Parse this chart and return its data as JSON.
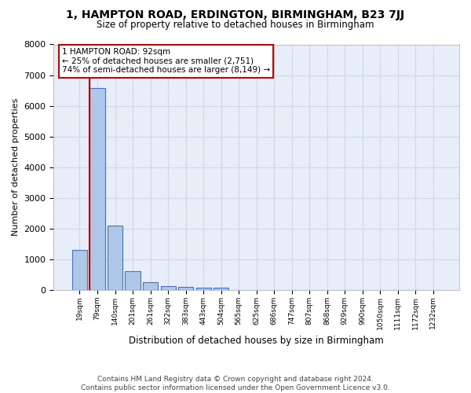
{
  "title": "1, HAMPTON ROAD, ERDINGTON, BIRMINGHAM, B23 7JJ",
  "subtitle": "Size of property relative to detached houses in Birmingham",
  "xlabel": "Distribution of detached houses by size in Birmingham",
  "ylabel": "Number of detached properties",
  "footer_line1": "Contains HM Land Registry data © Crown copyright and database right 2024.",
  "footer_line2": "Contains public sector information licensed under the Open Government Licence v3.0.",
  "bar_categories": [
    "19sqm",
    "79sqm",
    "140sqm",
    "201sqm",
    "261sqm",
    "322sqm",
    "383sqm",
    "443sqm",
    "504sqm",
    "565sqm",
    "625sqm",
    "686sqm",
    "747sqm",
    "807sqm",
    "868sqm",
    "929sqm",
    "990sqm",
    "1050sqm",
    "1111sqm",
    "1172sqm",
    "1232sqm"
  ],
  "bar_values": [
    1300,
    6580,
    2100,
    620,
    260,
    130,
    100,
    65,
    65,
    0,
    0,
    0,
    0,
    0,
    0,
    0,
    0,
    0,
    0,
    0,
    0
  ],
  "bar_color": "#aec6e8",
  "bar_edge_color": "#4472c4",
  "grid_color": "#d0d8e8",
  "background_color": "#e8eef8",
  "annotation_line1": "1 HAMPTON ROAD: 92sqm",
  "annotation_line2": "← 25% of detached houses are smaller (2,751)",
  "annotation_line3": "74% of semi-detached houses are larger (8,149) →",
  "marker_line_color": "#cc0000",
  "ylim_max": 8000,
  "yticks": [
    0,
    1000,
    2000,
    3000,
    4000,
    5000,
    6000,
    7000,
    8000
  ]
}
